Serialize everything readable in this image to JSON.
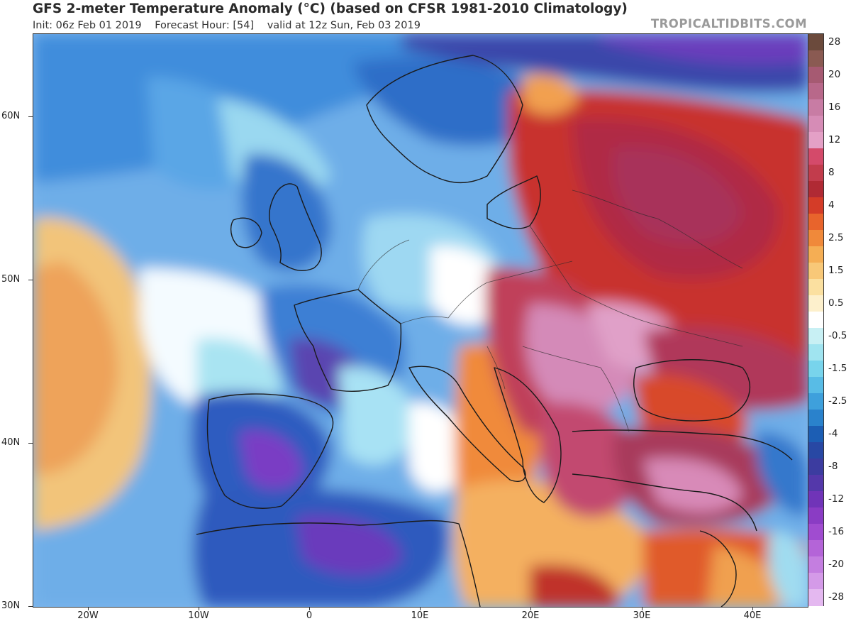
{
  "header": {
    "title": "GFS 2-meter Temperature Anomaly (°C) (based on CFSR 1981-2010 Climatology)",
    "init": "Init: 06z Feb 01 2019",
    "forecast_hour": "Forecast Hour: [54]",
    "valid": "valid at 12z Sun, Feb 03 2019",
    "brand": "TROPICALTIDBITS.COM"
  },
  "map": {
    "latitude_labels": [
      "60N",
      "50N",
      "40N",
      "30N"
    ],
    "longitude_labels": [
      "20W",
      "10W",
      "0",
      "10E",
      "20E",
      "30E",
      "40E"
    ],
    "lon_range": [
      -25,
      45
    ],
    "lat_range": [
      30,
      65
    ]
  },
  "legend": {
    "labels": [
      "28",
      "20",
      "16",
      "12",
      "8",
      "4",
      "2.5",
      "1.5",
      "0.5",
      "-0.5",
      "-1.5",
      "-2.5",
      "-4",
      "-8",
      "-12",
      "-16",
      "-20",
      "-28"
    ],
    "all_labels": [
      "28",
      "24",
      "20",
      "18",
      "16",
      "14",
      "12",
      "10",
      "8",
      "6",
      "4",
      "3",
      "2.5",
      "2",
      "1.5",
      "1",
      "0.5",
      "0",
      "-0.5",
      "-1",
      "-1.5",
      "-2",
      "-2.5",
      "-3",
      "-4",
      "-6",
      "-8",
      "-10",
      "-12",
      "-14",
      "-16",
      "-18",
      "-20",
      "-24",
      "-28"
    ],
    "colors": [
      "#6b4a3c",
      "#8a5a52",
      "#a65a72",
      "#b8688a",
      "#c87ca4",
      "#d68cb6",
      "#e4a0c6",
      "#d44a6a",
      "#c23c4c",
      "#b02a34",
      "#d43c28",
      "#e8642c",
      "#f0893a",
      "#f5ae54",
      "#f8c878",
      "#fbe0a0",
      "#fdf0cc",
      "#ffffff",
      "#c8f0f4",
      "#a0e4f0",
      "#78d4ec",
      "#58bce6",
      "#3ea0dc",
      "#2a82cc",
      "#1c5eb4",
      "#2848a4",
      "#3c3ca0",
      "#5438aa",
      "#7034b8",
      "#8a3cc4",
      "#a04cd0",
      "#b464d8",
      "#c47ee0",
      "#d49ae8",
      "#e4b8f0"
    ]
  }
}
